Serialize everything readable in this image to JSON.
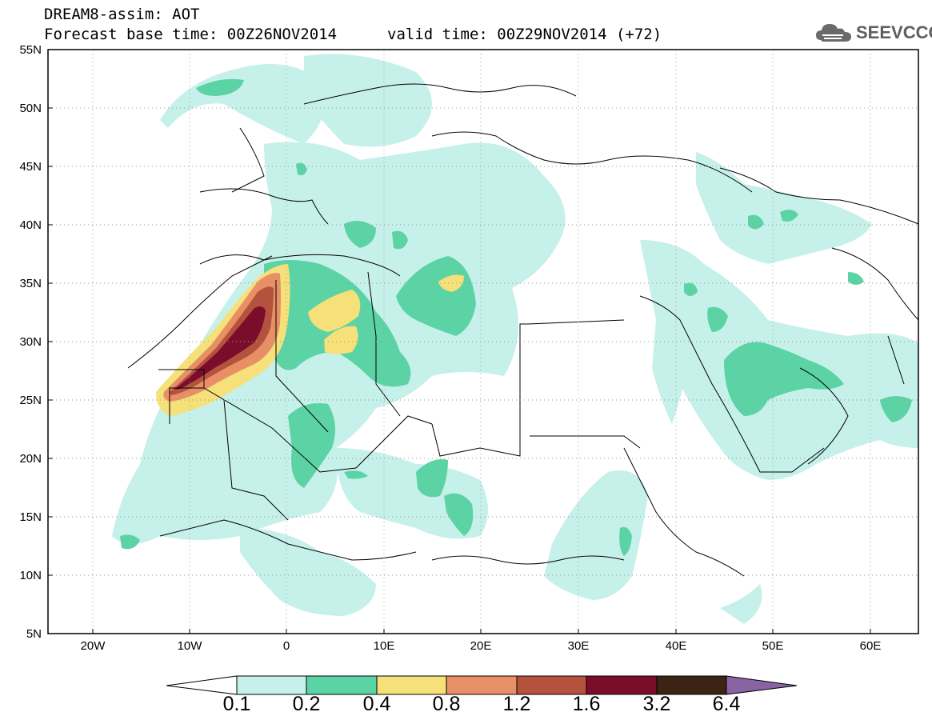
{
  "header": {
    "line1": "DREAM8-assim: AOT",
    "line2": "Forecast base time: 00Z26NOV2014",
    "valid": "valid time: 00Z29NOV2014 (+72)"
  },
  "logo": {
    "text": "SEEVCCC",
    "icon": "cloud-icon"
  },
  "map": {
    "lat_labels": [
      "55N",
      "50N",
      "45N",
      "40N",
      "35N",
      "30N",
      "25N",
      "20N",
      "15N",
      "10N",
      "5N"
    ],
    "lon_labels": [
      "20W",
      "10W",
      "0",
      "10E",
      "20E",
      "30E",
      "40E",
      "50E",
      "60E"
    ],
    "lat_range": [
      5,
      55
    ],
    "lon_range": [
      -25,
      65
    ]
  },
  "colorbar": {
    "labels": [
      "0.1",
      "0.2",
      "0.4",
      "0.8",
      "1.2",
      "1.6",
      "3.2",
      "6.4"
    ],
    "colors": [
      "#ffffff",
      "#c6f0ea",
      "#5cd3a5",
      "#f5e07a",
      "#e98f66",
      "#b4523e",
      "#7a0e2a",
      "#3b2414",
      "#8a63a4"
    ]
  }
}
